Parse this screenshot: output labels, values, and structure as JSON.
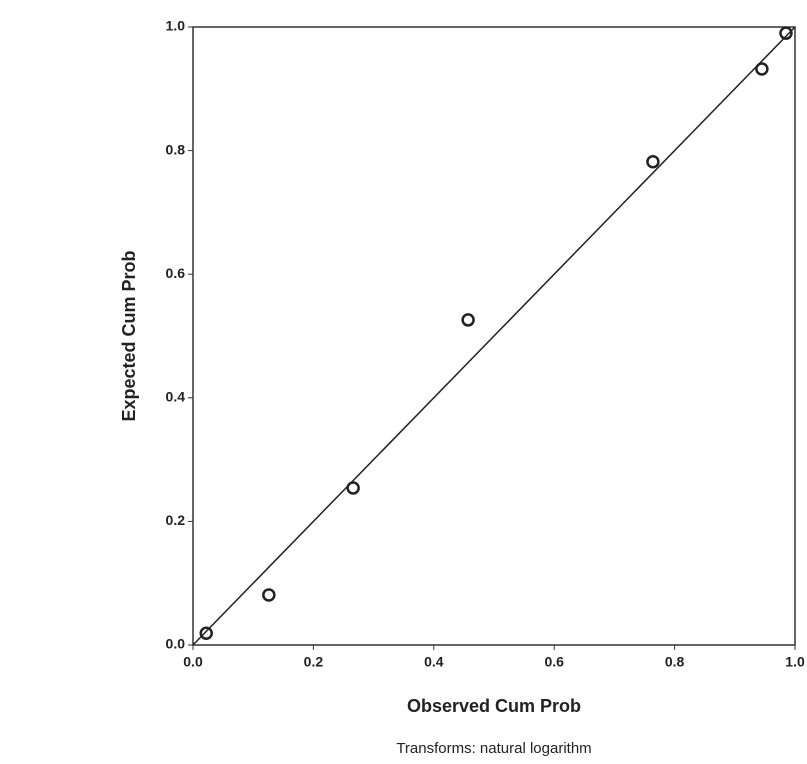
{
  "chart_data": {
    "type": "scatter",
    "x_label": "Observed Cum Prob",
    "y_label": "Expected Cum Prob",
    "footnote": "Transforms: natural logarithm",
    "x": [
      0.022,
      0.126,
      0.266,
      0.457,
      0.764,
      0.945,
      0.985
    ],
    "values": [
      0.019,
      0.081,
      0.254,
      0.526,
      0.782,
      0.932,
      0.99
    ],
    "color": "#222222",
    "xlim": [
      0,
      1
    ],
    "ylim": [
      0,
      1
    ],
    "xticks": [
      {
        "value": 0,
        "label": "0.0"
      },
      0.2,
      0.4,
      0.6,
      0.8,
      {
        "value": 1,
        "label": "1.0"
      }
    ],
    "yticks": [
      {
        "value": 0,
        "label": "0.0"
      },
      0.2,
      0.4,
      0.6,
      0.8,
      {
        "value": 1,
        "label": "1.0"
      }
    ],
    "grid": false
  }
}
